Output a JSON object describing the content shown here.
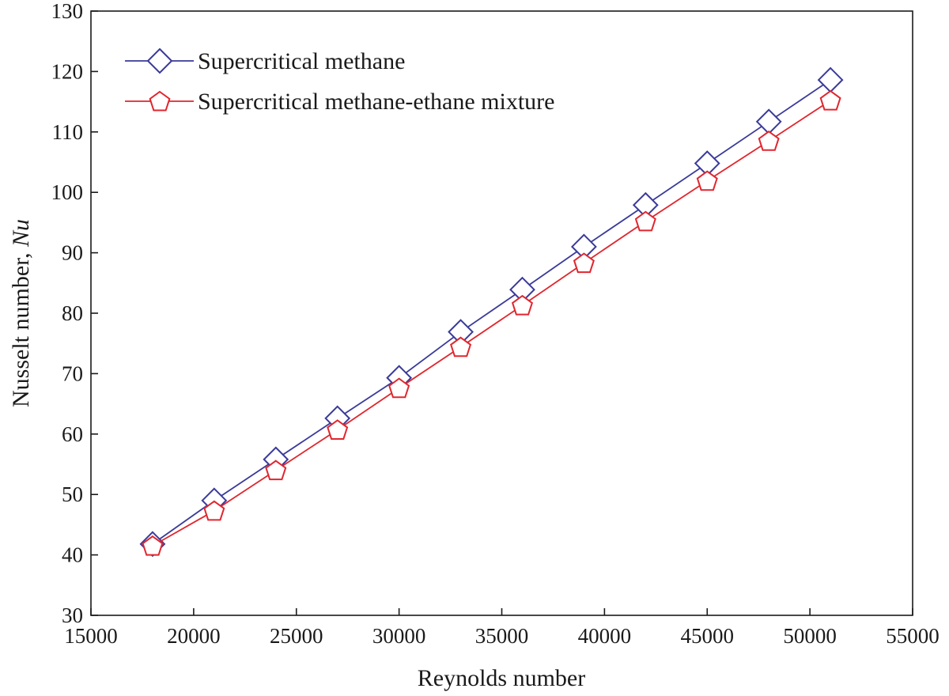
{
  "chart_data": {
    "type": "line",
    "title": "",
    "xlabel": "Reynolds number",
    "ylabel": {
      "prefix": "Nusselt number, ",
      "symbol": "Nu"
    },
    "xlim": [
      15000,
      55000
    ],
    "ylim": [
      30,
      130
    ],
    "xticks": [
      15000,
      20000,
      25000,
      30000,
      35000,
      40000,
      45000,
      50000,
      55000
    ],
    "yticks": [
      30,
      40,
      50,
      60,
      70,
      80,
      90,
      100,
      110,
      120,
      130
    ],
    "grid": false,
    "legend_position": "top-left",
    "x": [
      18000,
      21000,
      24000,
      27000,
      30000,
      33000,
      36000,
      39000,
      42000,
      45000,
      48000,
      51000
    ],
    "series": [
      {
        "name": "Supercritical methane",
        "color": "#3a3a9a",
        "marker": "diamond",
        "values": [
          41.8,
          49.0,
          55.8,
          62.6,
          69.3,
          76.9,
          83.9,
          91.0,
          97.9,
          104.8,
          111.7,
          118.6
        ]
      },
      {
        "name": "Supercritical methane-ethane mixture",
        "color": "#e0262e",
        "marker": "pentagon",
        "values": [
          41.5,
          47.3,
          54.0,
          60.7,
          67.6,
          74.4,
          81.3,
          88.3,
          95.2,
          101.9,
          108.5,
          115.2
        ]
      }
    ]
  }
}
